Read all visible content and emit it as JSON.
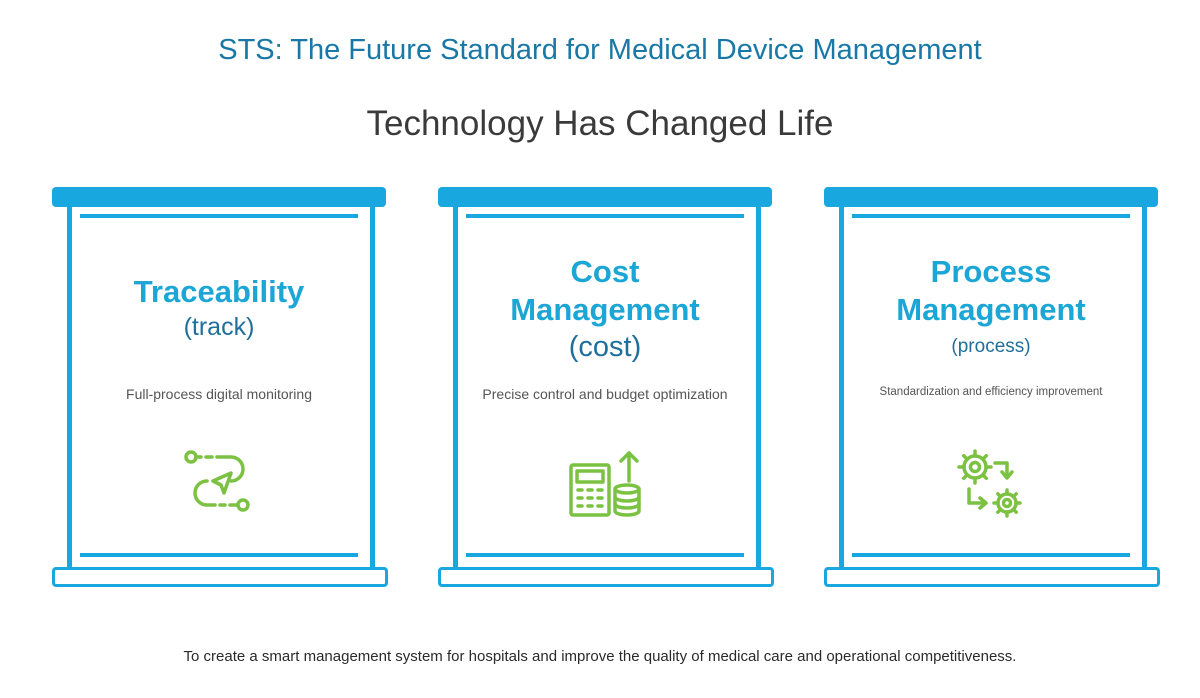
{
  "title": "STS: The Future Standard for Medical Device Management",
  "subtitle": "Technology Has Changed Life",
  "cards": [
    {
      "heading_lines": [
        "Traceability"
      ],
      "sub": "(track)",
      "description": "Full-process digital monitoring",
      "icon": "route-arrow-icon"
    },
    {
      "heading_lines": [
        "Cost",
        "Management"
      ],
      "sub": "(cost)",
      "description": "Precise control and budget optimization",
      "icon": "calculator-coins-icon"
    },
    {
      "heading_lines": [
        "Process",
        "Management"
      ],
      "sub": "(process)",
      "description": "Standardization and efficiency improvement",
      "icon": "gears-process-icon"
    }
  ],
  "footer": "To create a smart management system for hospitals and improve the quality of medical care and operational competitiveness.",
  "colors": {
    "title": "#1a78a6",
    "frame": "#18a7df",
    "heading": "#1ca6d6",
    "icon": "#7cc242"
  }
}
